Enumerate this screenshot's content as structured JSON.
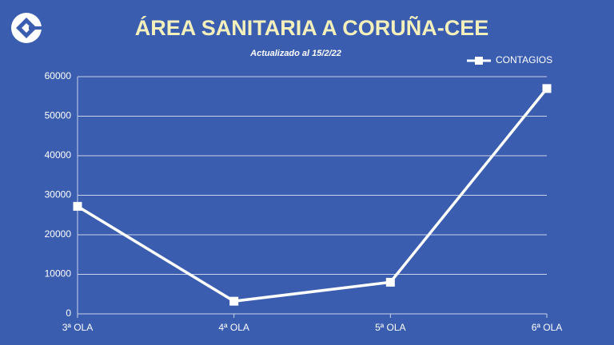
{
  "chart_data": {
    "type": "line",
    "title": "ÁREA SANITARIA A CORUÑA-CEE",
    "subtitle": "Actualizado al 15/2/22",
    "categories": [
      "3ª OLA",
      "4ª OLA",
      "5ª OLA",
      "6ª OLA"
    ],
    "series": [
      {
        "name": "CONTAGIOS",
        "color": "#ffffff",
        "values": [
          27200,
          3200,
          8000,
          57000
        ]
      }
    ],
    "ylim": [
      0,
      60000
    ],
    "yticks": [
      0,
      10000,
      20000,
      30000,
      40000,
      50000,
      60000
    ],
    "grid": true,
    "legend": "top-right"
  }
}
